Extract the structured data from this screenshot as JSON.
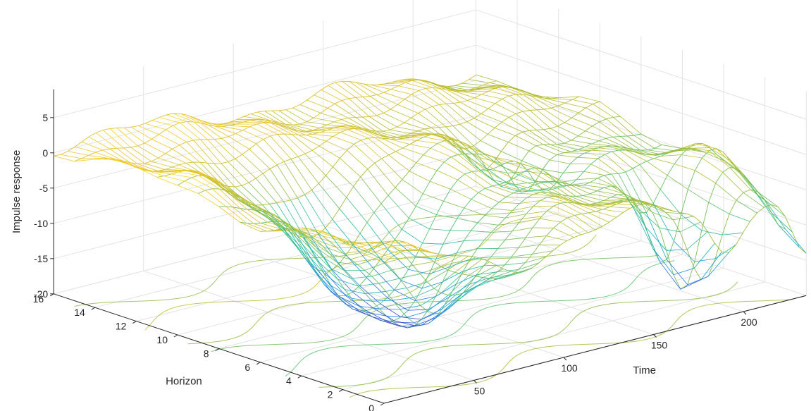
{
  "chart_data": {
    "type": "surface3d",
    "style": "meshc (wireframe mesh with contour projection on floor)",
    "title": "",
    "xlabel": "Time",
    "ylabel": "Horizon",
    "zlabel": "Impulse response",
    "x_ticks": [
      50,
      100,
      150,
      200
    ],
    "y_ticks": [
      0,
      2,
      4,
      6,
      8,
      10,
      12,
      14,
      16
    ],
    "z_ticks": [
      5,
      0,
      -5,
      -10,
      -15,
      -20
    ],
    "xlim": [
      1,
      235
    ],
    "ylim": [
      0,
      16
    ],
    "zlim": [
      -20,
      9
    ],
    "grid": true,
    "colormap": "parula",
    "colormap_stops": [
      "#3e26a8",
      "#2c7cf5",
      "#12b1c7",
      "#3fc28a",
      "#a6be36",
      "#f5c52a",
      "#f9fb0e"
    ],
    "surface_features": [
      {
        "description": "deep trough",
        "time": 70,
        "horizon": 6,
        "value": -19
      },
      {
        "description": "sharp dip",
        "time": 190,
        "horizon": 2,
        "value": -13
      },
      {
        "description": "dip",
        "time": 170,
        "horizon": 8,
        "value": -7
      },
      {
        "description": "dip near end",
        "time": 235,
        "horizon": 0,
        "value": -10
      },
      {
        "description": "ridge",
        "time": 222,
        "horizon": 3,
        "value": 2.5
      },
      {
        "description": "ridge",
        "time": 125,
        "horizon": 6,
        "value": 2
      }
    ]
  }
}
